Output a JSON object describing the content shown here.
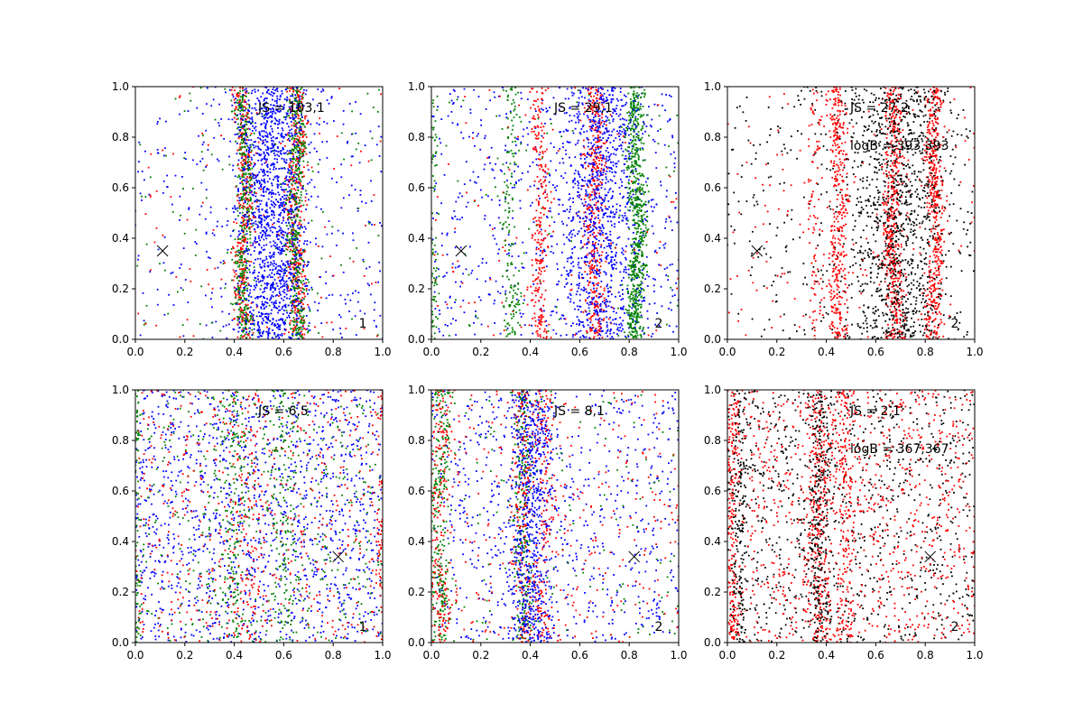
{
  "figure": {
    "colors": {
      "blue": "#0000ff",
      "green": "#008000",
      "red": "#ff0000",
      "black": "#000000",
      "frame": "#000000",
      "background": "#ffffff"
    }
  },
  "chart_data": [
    {
      "type": "scatter",
      "xlim": [
        0.0,
        1.0
      ],
      "ylim": [
        0.0,
        1.0
      ],
      "xticks": [
        "0.0",
        "0.2",
        "0.4",
        "0.6",
        "0.8",
        "1.0"
      ],
      "yticks": [
        "0.0",
        "0.2",
        "0.4",
        "0.6",
        "0.8",
        "1.0"
      ],
      "grid": false,
      "annotations": [
        "JS = 103,1"
      ],
      "corner_label": "1",
      "marker": {
        "symbol": "x",
        "x": 0.11,
        "y": 0.35
      },
      "point_colors": [
        "blue",
        "green",
        "red"
      ],
      "bands": [
        {
          "center": 0.44,
          "width": 0.018,
          "color": "red",
          "count": 380
        },
        {
          "center": 0.44,
          "width": 0.016,
          "color": "green",
          "count": 380
        },
        {
          "center": 0.65,
          "width": 0.02,
          "color": "red",
          "count": 420
        },
        {
          "center": 0.65,
          "width": 0.018,
          "color": "green",
          "count": 450
        },
        {
          "center": 0.55,
          "width": 0.07,
          "color": "blue",
          "count": 1300
        }
      ],
      "scatter_counts": {
        "blue": 380,
        "green": 110,
        "red": 110
      }
    },
    {
      "type": "scatter",
      "xlim": [
        0.0,
        1.0
      ],
      "ylim": [
        0.0,
        1.0
      ],
      "xticks": [
        "0.0",
        "0.2",
        "0.4",
        "0.6",
        "0.8",
        "1.0"
      ],
      "yticks": [
        "0.0",
        "0.2",
        "0.4",
        "0.6",
        "0.8",
        "1.0"
      ],
      "grid": false,
      "annotations": [
        "JS = 29,1"
      ],
      "corner_label": "2",
      "marker": {
        "symbol": "x",
        "x": 0.12,
        "y": 0.35
      },
      "point_colors": [
        "blue",
        "green",
        "red"
      ],
      "bands": [
        {
          "center": 0.0,
          "width": 0.012,
          "color": "green",
          "count": 120
        },
        {
          "center": 0.32,
          "width": 0.018,
          "color": "green",
          "count": 160
        },
        {
          "center": 0.44,
          "width": 0.018,
          "color": "red",
          "count": 260
        },
        {
          "center": 0.66,
          "width": 0.022,
          "color": "red",
          "count": 420
        },
        {
          "center": 0.83,
          "width": 0.018,
          "color": "green",
          "count": 700
        },
        {
          "center": 0.68,
          "width": 0.08,
          "color": "blue",
          "count": 900
        }
      ],
      "scatter_counts": {
        "blue": 650,
        "green": 80,
        "red": 90
      }
    },
    {
      "type": "scatter",
      "xlim": [
        0.0,
        1.0
      ],
      "ylim": [
        0.0,
        1.0
      ],
      "xticks": [
        "0.0",
        "0.2",
        "0.4",
        "0.6",
        "0.8",
        "1.0"
      ],
      "yticks": [
        "0.0",
        "0.2",
        "0.4",
        "0.6",
        "0.8",
        "1.0"
      ],
      "grid": false,
      "annotations": [
        "JS = 27,2",
        "logB = 393,393"
      ],
      "corner_label": "2",
      "marker": {
        "symbol": "x",
        "x": 0.12,
        "y": 0.35
      },
      "point_colors": [
        "black",
        "red"
      ],
      "bands": [
        {
          "center": 0.45,
          "width": 0.018,
          "color": "red",
          "count": 380
        },
        {
          "center": 0.67,
          "width": 0.02,
          "color": "red",
          "count": 520
        },
        {
          "center": 0.84,
          "width": 0.018,
          "color": "red",
          "count": 480
        },
        {
          "center": 0.35,
          "width": 0.015,
          "color": "red",
          "count": 90
        },
        {
          "center": 0.7,
          "width": 0.1,
          "color": "black",
          "count": 1000
        }
      ],
      "scatter_counts": {
        "black": 380,
        "red": 170
      }
    },
    {
      "type": "scatter",
      "xlim": [
        0.0,
        1.0
      ],
      "ylim": [
        0.0,
        1.0
      ],
      "xticks": [
        "0.0",
        "0.2",
        "0.4",
        "0.6",
        "0.8",
        "1.0"
      ],
      "yticks": [
        "0.0",
        "0.2",
        "0.4",
        "0.6",
        "0.8",
        "1.0"
      ],
      "grid": false,
      "annotations": [
        "JS = 6,5"
      ],
      "corner_label": "1",
      "marker": {
        "symbol": "x",
        "x": 0.82,
        "y": 0.34
      },
      "point_colors": [
        "blue",
        "green",
        "red"
      ],
      "bands": [
        {
          "center": 0.0,
          "width": 0.01,
          "color": "green",
          "count": 120
        },
        {
          "center": 1.0,
          "width": 0.01,
          "color": "red",
          "count": 120
        },
        {
          "center": 0.4,
          "width": 0.03,
          "color": "green",
          "count": 180
        },
        {
          "center": 0.6,
          "width": 0.03,
          "color": "green",
          "count": 160
        },
        {
          "center": 0.45,
          "width": 0.04,
          "color": "red",
          "count": 140
        }
      ],
      "scatter_counts": {
        "blue": 1350,
        "green": 420,
        "red": 520
      }
    },
    {
      "type": "scatter",
      "xlim": [
        0.0,
        1.0
      ],
      "ylim": [
        0.0,
        1.0
      ],
      "xticks": [
        "0.0",
        "0.2",
        "0.4",
        "0.6",
        "0.8",
        "1.0"
      ],
      "yticks": [
        "0.0",
        "0.2",
        "0.4",
        "0.6",
        "0.8",
        "1.0"
      ],
      "grid": false,
      "annotations": [
        "JS = 8,1"
      ],
      "corner_label": "2",
      "marker": {
        "symbol": "x",
        "x": 0.82,
        "y": 0.34
      },
      "point_colors": [
        "blue",
        "green",
        "red"
      ],
      "bands": [
        {
          "center": 0.03,
          "width": 0.025,
          "color": "green",
          "count": 300
        },
        {
          "center": 0.03,
          "width": 0.025,
          "color": "red",
          "count": 200
        },
        {
          "center": 0.37,
          "width": 0.02,
          "color": "green",
          "count": 260
        },
        {
          "center": 0.37,
          "width": 0.02,
          "color": "red",
          "count": 200
        },
        {
          "center": 0.46,
          "width": 0.02,
          "color": "red",
          "count": 180
        },
        {
          "center": 0.4,
          "width": 0.045,
          "color": "blue",
          "count": 650
        }
      ],
      "scatter_counts": {
        "blue": 700,
        "green": 140,
        "red": 320
      }
    },
    {
      "type": "scatter",
      "xlim": [
        0.0,
        1.0
      ],
      "ylim": [
        0.0,
        1.0
      ],
      "xticks": [
        "0.0",
        "0.2",
        "0.4",
        "0.6",
        "0.8",
        "1.0"
      ],
      "yticks": [
        "0.0",
        "0.2",
        "0.4",
        "0.6",
        "0.8",
        "1.0"
      ],
      "grid": false,
      "annotations": [
        "JS = 2,1",
        "logB = 367,367"
      ],
      "corner_label": "2",
      "marker": {
        "symbol": "x",
        "x": 0.82,
        "y": 0.34
      },
      "point_colors": [
        "black",
        "red"
      ],
      "bands": [
        {
          "center": 0.02,
          "width": 0.015,
          "color": "red",
          "count": 220
        },
        {
          "center": 0.05,
          "width": 0.02,
          "color": "black",
          "count": 160
        },
        {
          "center": 0.37,
          "width": 0.025,
          "color": "red",
          "count": 300
        },
        {
          "center": 0.37,
          "width": 0.025,
          "color": "black",
          "count": 280
        },
        {
          "center": 0.48,
          "width": 0.02,
          "color": "red",
          "count": 200
        }
      ],
      "scatter_counts": {
        "black": 900,
        "red": 950
      }
    }
  ]
}
